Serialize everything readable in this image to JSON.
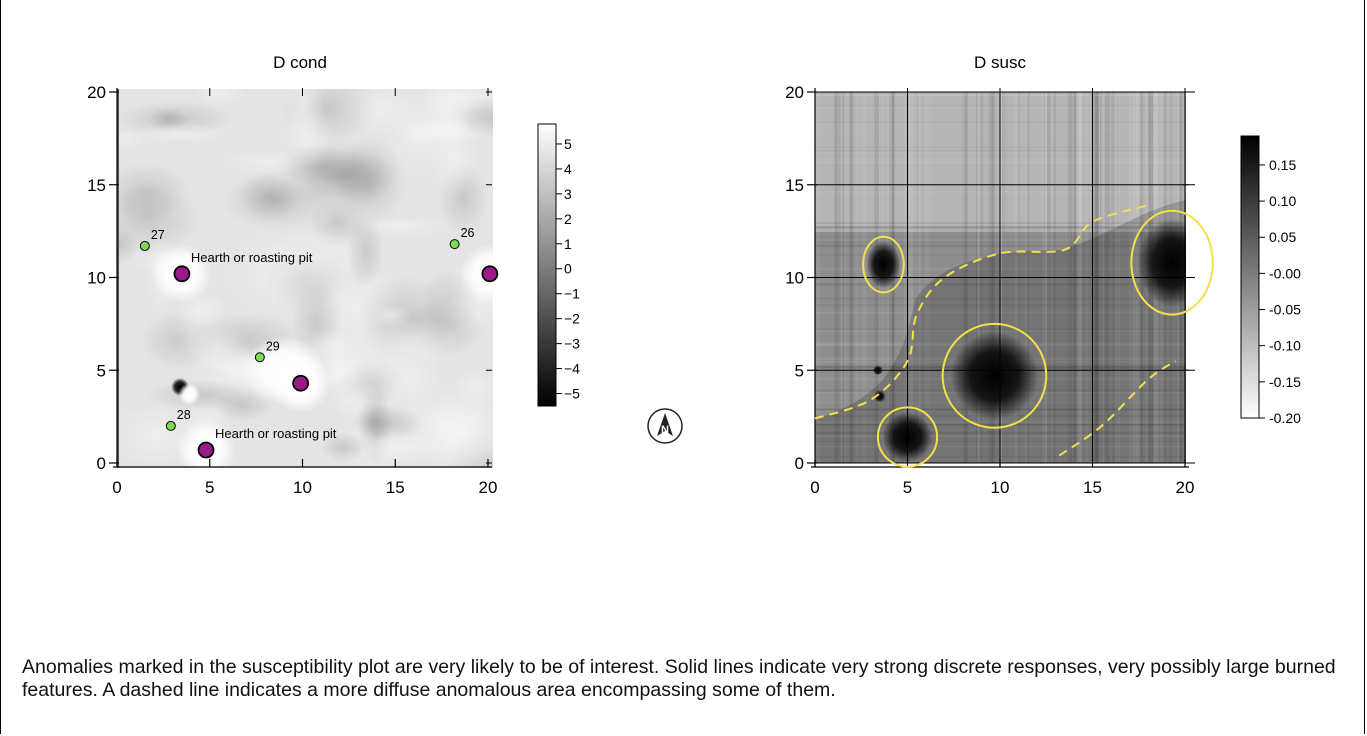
{
  "caption": "Anomalies marked in the susceptibility plot are very likely to be of interest. Solid lines indicate very strong discrete responses, very possibly large burned features. A dashed line indicates a more diffuse anomalous area encompassing some of them.",
  "colors": {
    "hearth_fill": "#9b1a8a",
    "sample_fill": "#7ed957",
    "anomaly_outline": "#f2e14a",
    "grid": "#000000"
  },
  "north_arrow": {
    "label": "N",
    "icon": "north-arrow-icon"
  },
  "chart_data": [
    {
      "type": "heatmap",
      "title": "D cond",
      "xlim": [
        0,
        20
      ],
      "ylim": [
        0,
        20
      ],
      "xticks": [
        0,
        5,
        10,
        15,
        20
      ],
      "yticks": [
        0,
        5,
        10,
        15,
        20
      ],
      "grid": false,
      "colorbar": {
        "ticks": [
          5,
          4,
          3,
          2,
          1,
          0,
          -1,
          -2,
          -3,
          -4,
          -5
        ],
        "tick_labels": [
          "5",
          "4",
          "3",
          "2",
          "1",
          "0",
          "−1",
          "−2",
          "−3",
          "−4",
          "−5"
        ],
        "range": [
          -5.5,
          5.8
        ],
        "high_color": "#ffffff",
        "low_color": "#000000"
      },
      "hearths": [
        {
          "x": 3.5,
          "y": 10.2,
          "label": "Hearth or roasting pit"
        },
        {
          "x": 9.9,
          "y": 4.3,
          "label": ""
        },
        {
          "x": 20.1,
          "y": 10.2,
          "label": ""
        },
        {
          "x": 4.8,
          "y": 0.7,
          "label": "Hearth or roasting pit"
        }
      ],
      "samples": [
        {
          "x": 1.5,
          "y": 11.7,
          "label": "27"
        },
        {
          "x": 18.2,
          "y": 11.8,
          "label": "26"
        },
        {
          "x": 7.7,
          "y": 5.7,
          "label": "29"
        },
        {
          "x": 2.9,
          "y": 2.0,
          "label": "28"
        }
      ]
    },
    {
      "type": "heatmap",
      "title": "D susc",
      "xlim": [
        0,
        20
      ],
      "ylim": [
        0,
        20
      ],
      "xticks": [
        0,
        5,
        10,
        15,
        20
      ],
      "yticks": [
        0,
        5,
        10,
        15,
        20
      ],
      "grid": true,
      "colorbar": {
        "ticks": [
          0.15,
          0.1,
          0.05,
          0.0,
          -0.05,
          -0.1,
          -0.15,
          -0.2
        ],
        "tick_labels": [
          "0.15",
          "0.10",
          "0.05",
          "-0.00",
          "-0.05",
          "-0.10",
          "-0.15",
          "-0.20"
        ],
        "range": [
          -0.2,
          0.19
        ],
        "high_color": "#000000",
        "low_color": "#ffffff"
      },
      "solid_anomalies": [
        {
          "cx": 3.7,
          "cy": 10.7,
          "rx": 1.1,
          "ry": 1.5
        },
        {
          "cx": 9.7,
          "cy": 4.7,
          "rx": 2.8,
          "ry": 2.8
        },
        {
          "cx": 5.0,
          "cy": 1.4,
          "rx": 1.6,
          "ry": 1.6
        },
        {
          "cx": 19.3,
          "cy": 10.8,
          "rx": 2.2,
          "ry": 2.8
        }
      ],
      "diffuse_anomalies": [
        [
          [
            0,
            2.4
          ],
          [
            3,
            3.4
          ],
          [
            5.0,
            5.5
          ],
          [
            5.5,
            8.0
          ],
          [
            7.0,
            10.0
          ],
          [
            10.0,
            11.3
          ],
          [
            13.5,
            11.5
          ],
          [
            15.0,
            13.0
          ],
          [
            18.0,
            13.9
          ]
        ],
        [
          [
            13.2,
            0.4
          ],
          [
            15.5,
            2.0
          ],
          [
            18.0,
            4.5
          ],
          [
            19.5,
            5.5
          ]
        ]
      ]
    }
  ]
}
